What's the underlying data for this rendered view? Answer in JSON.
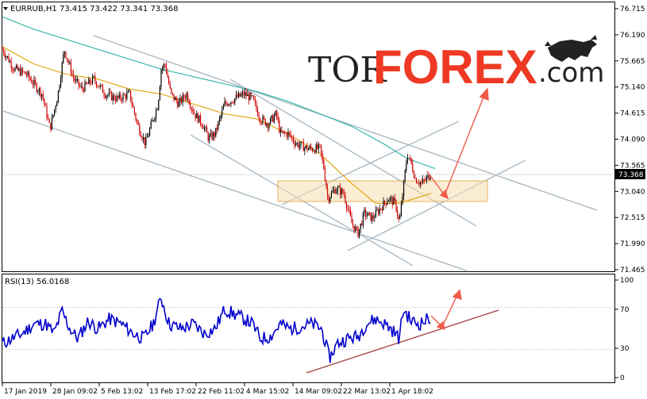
{
  "header": {
    "symbol_line": "EURRUB,H1  73.415 73.422 73.341 73.368",
    "rsi_label": "RSI(13) 56.0168"
  },
  "logo": {
    "tor": "TOR",
    "forex": "FOREX",
    "com": ".com",
    "bull_icon": "bull-icon"
  },
  "price_axis": {
    "ticks": [
      "76.715",
      "76.190",
      "75.665",
      "75.140",
      "74.615",
      "74.090",
      "73.565",
      "73.040",
      "72.515",
      "71.990",
      "71.465"
    ],
    "current_price": "73.368"
  },
  "rsi_axis": {
    "ticks": [
      "100",
      "70",
      "30",
      "0"
    ]
  },
  "time_axis": {
    "labels": [
      "17 Jan 2019",
      "28 Jan 09:02",
      "5 Feb 13:02",
      "13 Feb 17:02",
      "22 Feb 11:02",
      "4 Mar 15:02",
      "14 Mar 09:02",
      "22 Mar 13:02",
      "1 Apr 18:02"
    ]
  },
  "colors": {
    "bull_candle": "#000000",
    "bear_candle": "#d00000",
    "ma_fast": "#e0a000",
    "ma_slow": "#20b0a0",
    "rsi_line": "#0000cc",
    "trend_lines": "#b0bec8",
    "arrow": "#f05a4a",
    "support_zone": "#f5deb0",
    "support_uptrend": "#a04040"
  },
  "chart_data": [
    {
      "type": "candlestick",
      "title": "EURRUB,H1",
      "ohlc_last": {
        "open": 73.415,
        "high": 73.422,
        "low": 73.341,
        "close": 73.368
      },
      "ylim": [
        71.465,
        76.715
      ],
      "path": [
        [
          0,
          75.9
        ],
        [
          15,
          75.5
        ],
        [
          30,
          75.4
        ],
        [
          50,
          75.0
        ],
        [
          60,
          74.3
        ],
        [
          70,
          75.0
        ],
        [
          78,
          75.9
        ],
        [
          90,
          75.3
        ],
        [
          100,
          75.1
        ],
        [
          115,
          75.3
        ],
        [
          130,
          75.0
        ],
        [
          145,
          74.9
        ],
        [
          160,
          75.0
        ],
        [
          170,
          74.4
        ],
        [
          180,
          74.0
        ],
        [
          190,
          74.5
        ],
        [
          196,
          74.8
        ],
        [
          200,
          75.5
        ],
        [
          205,
          75.6
        ],
        [
          212,
          75.0
        ],
        [
          222,
          74.8
        ],
        [
          232,
          75.0
        ],
        [
          242,
          74.6
        ],
        [
          252,
          74.4
        ],
        [
          260,
          74.1
        ],
        [
          268,
          74.2
        ],
        [
          280,
          74.8
        ],
        [
          292,
          74.9
        ],
        [
          305,
          75.0
        ],
        [
          315,
          74.9
        ],
        [
          325,
          74.5
        ],
        [
          335,
          74.4
        ],
        [
          345,
          74.6
        ],
        [
          350,
          74.2
        ],
        [
          360,
          74.2
        ],
        [
          370,
          74.0
        ],
        [
          385,
          73.9
        ],
        [
          400,
          73.9
        ],
        [
          405,
          73.5
        ],
        [
          410,
          72.9
        ],
        [
          420,
          73.1
        ],
        [
          430,
          73.0
        ],
        [
          440,
          72.4
        ],
        [
          448,
          72.2
        ],
        [
          456,
          72.6
        ],
        [
          466,
          72.5
        ],
        [
          476,
          72.7
        ],
        [
          486,
          72.9
        ],
        [
          495,
          72.8
        ],
        [
          500,
          72.4
        ],
        [
          505,
          73.1
        ],
        [
          510,
          73.8
        ],
        [
          515,
          73.6
        ],
        [
          520,
          73.3
        ],
        [
          528,
          73.2
        ],
        [
          535,
          73.3
        ],
        [
          540,
          73.4
        ]
      ],
      "ma_fast": [
        [
          0,
          75.95
        ],
        [
          40,
          75.6
        ],
        [
          80,
          75.4
        ],
        [
          120,
          75.3
        ],
        [
          160,
          75.1
        ],
        [
          200,
          75.0
        ],
        [
          240,
          74.8
        ],
        [
          280,
          74.6
        ],
        [
          320,
          74.5
        ],
        [
          360,
          74.2
        ],
        [
          400,
          73.8
        ],
        [
          440,
          73.2
        ],
        [
          470,
          72.8
        ],
        [
          500,
          72.8
        ],
        [
          540,
          73.0
        ]
      ],
      "ma_slow": [
        [
          0,
          76.55
        ],
        [
          40,
          76.3
        ],
        [
          80,
          76.1
        ],
        [
          120,
          75.9
        ],
        [
          160,
          75.7
        ],
        [
          200,
          75.5
        ],
        [
          240,
          75.35
        ],
        [
          280,
          75.2
        ],
        [
          320,
          75.05
        ],
        [
          360,
          74.85
        ],
        [
          400,
          74.6
        ],
        [
          440,
          74.35
        ],
        [
          480,
          74.0
        ],
        [
          510,
          73.7
        ],
        [
          545,
          73.5
        ]
      ]
    },
    {
      "type": "line",
      "title": "RSI(13)",
      "last_value": 56.0168,
      "ylim": [
        0,
        100
      ],
      "levels": [
        70,
        30
      ],
      "path": [
        [
          0,
          35
        ],
        [
          12,
          40
        ],
        [
          25,
          45
        ],
        [
          40,
          55
        ],
        [
          55,
          55
        ],
        [
          65,
          45
        ],
        [
          75,
          68
        ],
        [
          85,
          50
        ],
        [
          95,
          40
        ],
        [
          108,
          58
        ],
        [
          120,
          50
        ],
        [
          135,
          60
        ],
        [
          150,
          55
        ],
        [
          165,
          45
        ],
        [
          178,
          40
        ],
        [
          190,
          55
        ],
        [
          200,
          82
        ],
        [
          210,
          55
        ],
        [
          225,
          50
        ],
        [
          240,
          55
        ],
        [
          255,
          45
        ],
        [
          268,
          50
        ],
        [
          280,
          70
        ],
        [
          292,
          65
        ],
        [
          305,
          60
        ],
        [
          315,
          55
        ],
        [
          325,
          40
        ],
        [
          338,
          42
        ],
        [
          350,
          55
        ],
        [
          362,
          50
        ],
        [
          375,
          52
        ],
        [
          390,
          55
        ],
        [
          402,
          50
        ],
        [
          412,
          20
        ],
        [
          422,
          35
        ],
        [
          435,
          40
        ],
        [
          448,
          42
        ],
        [
          458,
          55
        ],
        [
          470,
          60
        ],
        [
          482,
          55
        ],
        [
          492,
          48
        ],
        [
          500,
          40
        ],
        [
          505,
          70
        ],
        [
          515,
          58
        ],
        [
          525,
          55
        ],
        [
          532,
          58
        ],
        [
          540,
          62
        ]
      ]
    }
  ]
}
